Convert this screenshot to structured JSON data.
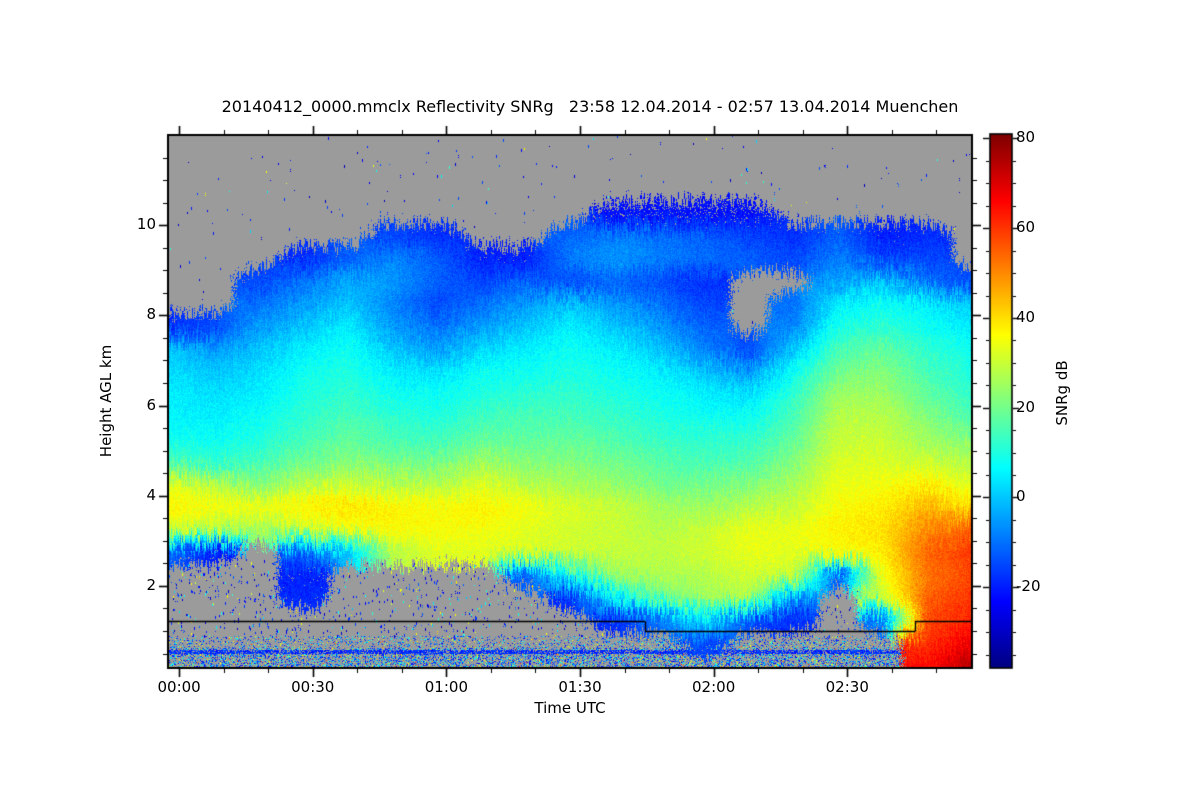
{
  "title": "20140412_0000.mmclx Reflectivity SNRg   23:58 12.04.2014 - 02:57 13.04.2014 Muenchen",
  "axes": {
    "x": {
      "label": "Time UTC",
      "major_ticks": [
        {
          "minutes": 0,
          "label": "00:00"
        },
        {
          "minutes": 30,
          "label": "00:30"
        },
        {
          "minutes": 60,
          "label": "01:00"
        },
        {
          "minutes": 90,
          "label": "01:30"
        },
        {
          "minutes": 120,
          "label": "02:00"
        },
        {
          "minutes": 150,
          "label": "02:30"
        }
      ],
      "minor_step_minutes": 10
    },
    "y": {
      "label": "Height AGL km",
      "major_ticks": [
        {
          "km": 2,
          "label": "2"
        },
        {
          "km": 4,
          "label": "4"
        },
        {
          "km": 6,
          "label": "6"
        },
        {
          "km": 8,
          "label": "8"
        },
        {
          "km": 10,
          "label": "10"
        }
      ],
      "minor_step_km": 0.5
    },
    "colorbar": {
      "label": "SNRg dB",
      "major_ticks": [
        {
          "db": 80,
          "label": "80"
        },
        {
          "db": 60,
          "label": "60"
        },
        {
          "db": 40,
          "label": "40"
        },
        {
          "db": 20,
          "label": "20"
        },
        {
          "db": 0,
          "label": "0"
        },
        {
          "db": -20,
          "label": "-20"
        }
      ],
      "minor_step_db": 5
    }
  },
  "chart_data": {
    "type": "heatmap",
    "title": "20140412_0000.mmclx Reflectivity SNRg   23:58 12.04.2014 - 02:57 13.04.2014 Muenchen",
    "xlabel": "Time UTC",
    "ylabel": "Height AGL km",
    "value_label": "SNRg dB",
    "time_span": {
      "start": "23:58 12.04.2014",
      "end": "02:57 13.04.2014"
    },
    "t_range_minutes": [
      -2.5,
      178
    ],
    "height_range_km": [
      0.18,
      12.0
    ],
    "color_scale": {
      "colormap": "jet",
      "vmin_db": -38,
      "vmax_db": 81,
      "tick_values_db": [
        -20,
        0,
        20,
        40,
        60,
        80
      ],
      "no_data_color": "#9b9b9b"
    },
    "times_min": [
      -2,
      8,
      18,
      28,
      38,
      48,
      58,
      68,
      78,
      88,
      98,
      108,
      118,
      128,
      138,
      148,
      158,
      168,
      178
    ],
    "heights_km": [
      11.75,
      11.25,
      10.75,
      10.25,
      9.75,
      9.25,
      8.75,
      8.25,
      7.75,
      7.25,
      6.75,
      6.25,
      5.75,
      5.25,
      4.75,
      4.25,
      3.75,
      3.25,
      2.75,
      2.25,
      1.75,
      1.25,
      0.75,
      0.25
    ],
    "values_db": [
      [
        null,
        null,
        null,
        null,
        null,
        null,
        null,
        null,
        null,
        null,
        null,
        null,
        null,
        null,
        null,
        null,
        null,
        null,
        null
      ],
      [
        null,
        null,
        null,
        null,
        null,
        null,
        null,
        null,
        null,
        null,
        null,
        null,
        null,
        null,
        null,
        null,
        null,
        null,
        null
      ],
      [
        null,
        null,
        null,
        null,
        null,
        null,
        null,
        null,
        null,
        null,
        null,
        null,
        null,
        null,
        null,
        null,
        null,
        null,
        null
      ],
      [
        null,
        null,
        null,
        null,
        null,
        null,
        null,
        null,
        null,
        null,
        -22,
        -22,
        -22,
        -22,
        null,
        null,
        null,
        null,
        null
      ],
      [
        null,
        null,
        null,
        null,
        null,
        -15,
        -18,
        null,
        null,
        -12,
        -8,
        -10,
        -12,
        -15,
        -18,
        -12,
        -20,
        -18,
        null
      ],
      [
        null,
        null,
        null,
        -18,
        -12,
        -8,
        -12,
        -20,
        -20,
        -8,
        -5,
        -8,
        -10,
        -12,
        -15,
        -8,
        -15,
        -15,
        null
      ],
      [
        null,
        null,
        -15,
        -10,
        -3,
        -5,
        -12,
        -15,
        -12,
        -15,
        -12,
        -15,
        -18,
        null,
        null,
        -5,
        0,
        -10,
        -15
      ],
      [
        null,
        null,
        -10,
        -5,
        0,
        -8,
        -15,
        -10,
        -5,
        0,
        -5,
        -10,
        -15,
        null,
        -10,
        5,
        8,
        5,
        0
      ],
      [
        -18,
        -15,
        -5,
        0,
        5,
        -5,
        -10,
        -5,
        0,
        5,
        0,
        -5,
        -12,
        null,
        -8,
        10,
        12,
        8,
        5
      ],
      [
        0,
        -5,
        0,
        5,
        8,
        0,
        -5,
        2,
        5,
        8,
        5,
        0,
        -8,
        -15,
        0,
        15,
        18,
        12,
        8
      ],
      [
        3,
        0,
        3,
        8,
        10,
        5,
        3,
        8,
        8,
        10,
        8,
        5,
        0,
        -5,
        8,
        20,
        22,
        15,
        10
      ],
      [
        5,
        3,
        5,
        10,
        12,
        8,
        8,
        10,
        12,
        12,
        10,
        8,
        5,
        3,
        12,
        25,
        25,
        18,
        12
      ],
      [
        6,
        5,
        8,
        12,
        15,
        12,
        10,
        14,
        15,
        15,
        13,
        10,
        8,
        8,
        15,
        28,
        28,
        22,
        15
      ],
      [
        8,
        8,
        10,
        15,
        18,
        15,
        14,
        18,
        18,
        18,
        16,
        13,
        12,
        12,
        18,
        30,
        30,
        25,
        22
      ],
      [
        15,
        12,
        15,
        20,
        22,
        20,
        20,
        25,
        22,
        22,
        20,
        17,
        15,
        16,
        22,
        32,
        32,
        30,
        28
      ],
      [
        32,
        28,
        22,
        28,
        30,
        28,
        28,
        32,
        28,
        26,
        24,
        20,
        20,
        22,
        26,
        34,
        35,
        38,
        32
      ],
      [
        38,
        36,
        35,
        38,
        40,
        38,
        36,
        38,
        35,
        32,
        30,
        26,
        25,
        28,
        30,
        36,
        38,
        45,
        40
      ],
      [
        30,
        28,
        25,
        30,
        34,
        36,
        36,
        35,
        33,
        31,
        30,
        28,
        30,
        34,
        34,
        38,
        40,
        50,
        55
      ],
      [
        -12,
        -20,
        null,
        -10,
        0,
        28,
        32,
        33,
        32,
        31,
        30,
        29,
        31,
        34,
        33,
        36,
        38,
        55,
        60
      ],
      [
        null,
        null,
        null,
        -20,
        null,
        null,
        null,
        null,
        -12,
        10,
        25,
        27,
        28,
        31,
        30,
        -15,
        35,
        52,
        58
      ],
      [
        null,
        null,
        null,
        -18,
        null,
        null,
        null,
        null,
        null,
        -18,
        5,
        20,
        25,
        28,
        -5,
        null,
        30,
        55,
        60
      ],
      [
        null,
        null,
        null,
        null,
        null,
        null,
        null,
        null,
        null,
        null,
        -18,
        -10,
        5,
        -15,
        -18,
        null,
        -10,
        58,
        62
      ],
      [
        null,
        null,
        null,
        null,
        null,
        null,
        null,
        null,
        null,
        null,
        null,
        null,
        -15,
        null,
        null,
        null,
        null,
        60,
        68
      ],
      [
        null,
        null,
        null,
        null,
        null,
        null,
        null,
        null,
        null,
        null,
        null,
        null,
        null,
        null,
        null,
        null,
        null,
        65,
        75
      ]
    ],
    "boundary_line": {
      "color": "#000000",
      "segments": [
        {
          "t0": -2.5,
          "t1": 104.6,
          "km": 1.22
        },
        {
          "t0": 104.6,
          "t1": 165.2,
          "km": 0.99
        },
        {
          "t0": 165.2,
          "t1": 178.0,
          "km": 1.22
        }
      ]
    },
    "ground_clutter_band": {
      "top_km": 0.88,
      "end_t_min": 163.5,
      "blue_line_km": [
        0.49,
        0.58
      ],
      "yellow_line_km": [
        0.08,
        0.17
      ]
    }
  }
}
